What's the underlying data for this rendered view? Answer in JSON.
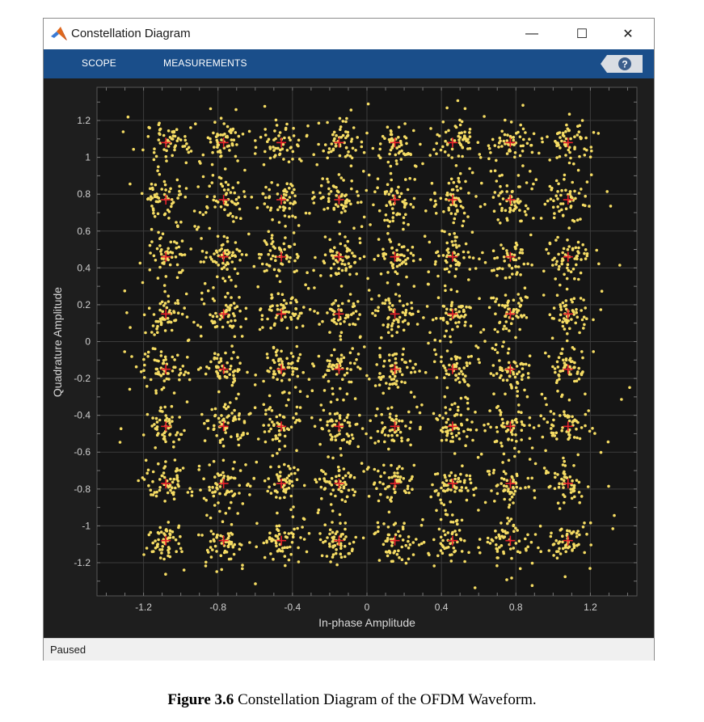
{
  "window": {
    "title": "Constellation Diagram",
    "minimize": "—",
    "maximize": "☐",
    "close": "✕"
  },
  "toolstrip": {
    "tabs": [
      "SCOPE",
      "MEASUREMENTS"
    ],
    "help_label": "?"
  },
  "status": {
    "text": "Paused"
  },
  "caption": {
    "label": "Figure 3.6",
    "text": " Constellation Diagram of the OFDM Waveform."
  },
  "colors": {
    "toolstrip": "#1a4e8a",
    "plot_background": "#151515",
    "samples": "#f5dc63",
    "reference": "#e8222b"
  },
  "chart_data": {
    "type": "scatter",
    "xlabel": "In-phase Amplitude",
    "ylabel": "Quadrature Amplitude",
    "xlim": [
      -1.45,
      1.45
    ],
    "ylim": [
      -1.38,
      1.38
    ],
    "grid": true,
    "xticks": [
      -1.2,
      -0.8,
      -0.4,
      0,
      0.4,
      0.8,
      1.2
    ],
    "xtick_labels": [
      "-1.2",
      "-0.8",
      "-0.4",
      "0",
      "0.4",
      "0.8",
      "1.2"
    ],
    "yticks": [
      1.2,
      1,
      0.8,
      0.6,
      0.4,
      0.2,
      0,
      -0.2,
      -0.4,
      -0.6,
      -0.8,
      -1,
      -1.2
    ],
    "ytick_labels": [
      "1.2",
      "1",
      "0.8",
      "0.6",
      "0.4",
      "0.2",
      "0",
      "-0.2",
      "-0.4",
      "-0.6",
      "-0.8",
      "-1",
      "-1.2"
    ],
    "reference_levels": [
      -1.08,
      -0.77,
      -0.46,
      -0.15,
      0.15,
      0.46,
      0.77,
      1.08
    ],
    "series": [
      {
        "values": "64-point reference constellation at all combinations of reference_levels (I × Q)",
        "marker": "+"
      }
    ],
    "noise_std": 0.055
  }
}
